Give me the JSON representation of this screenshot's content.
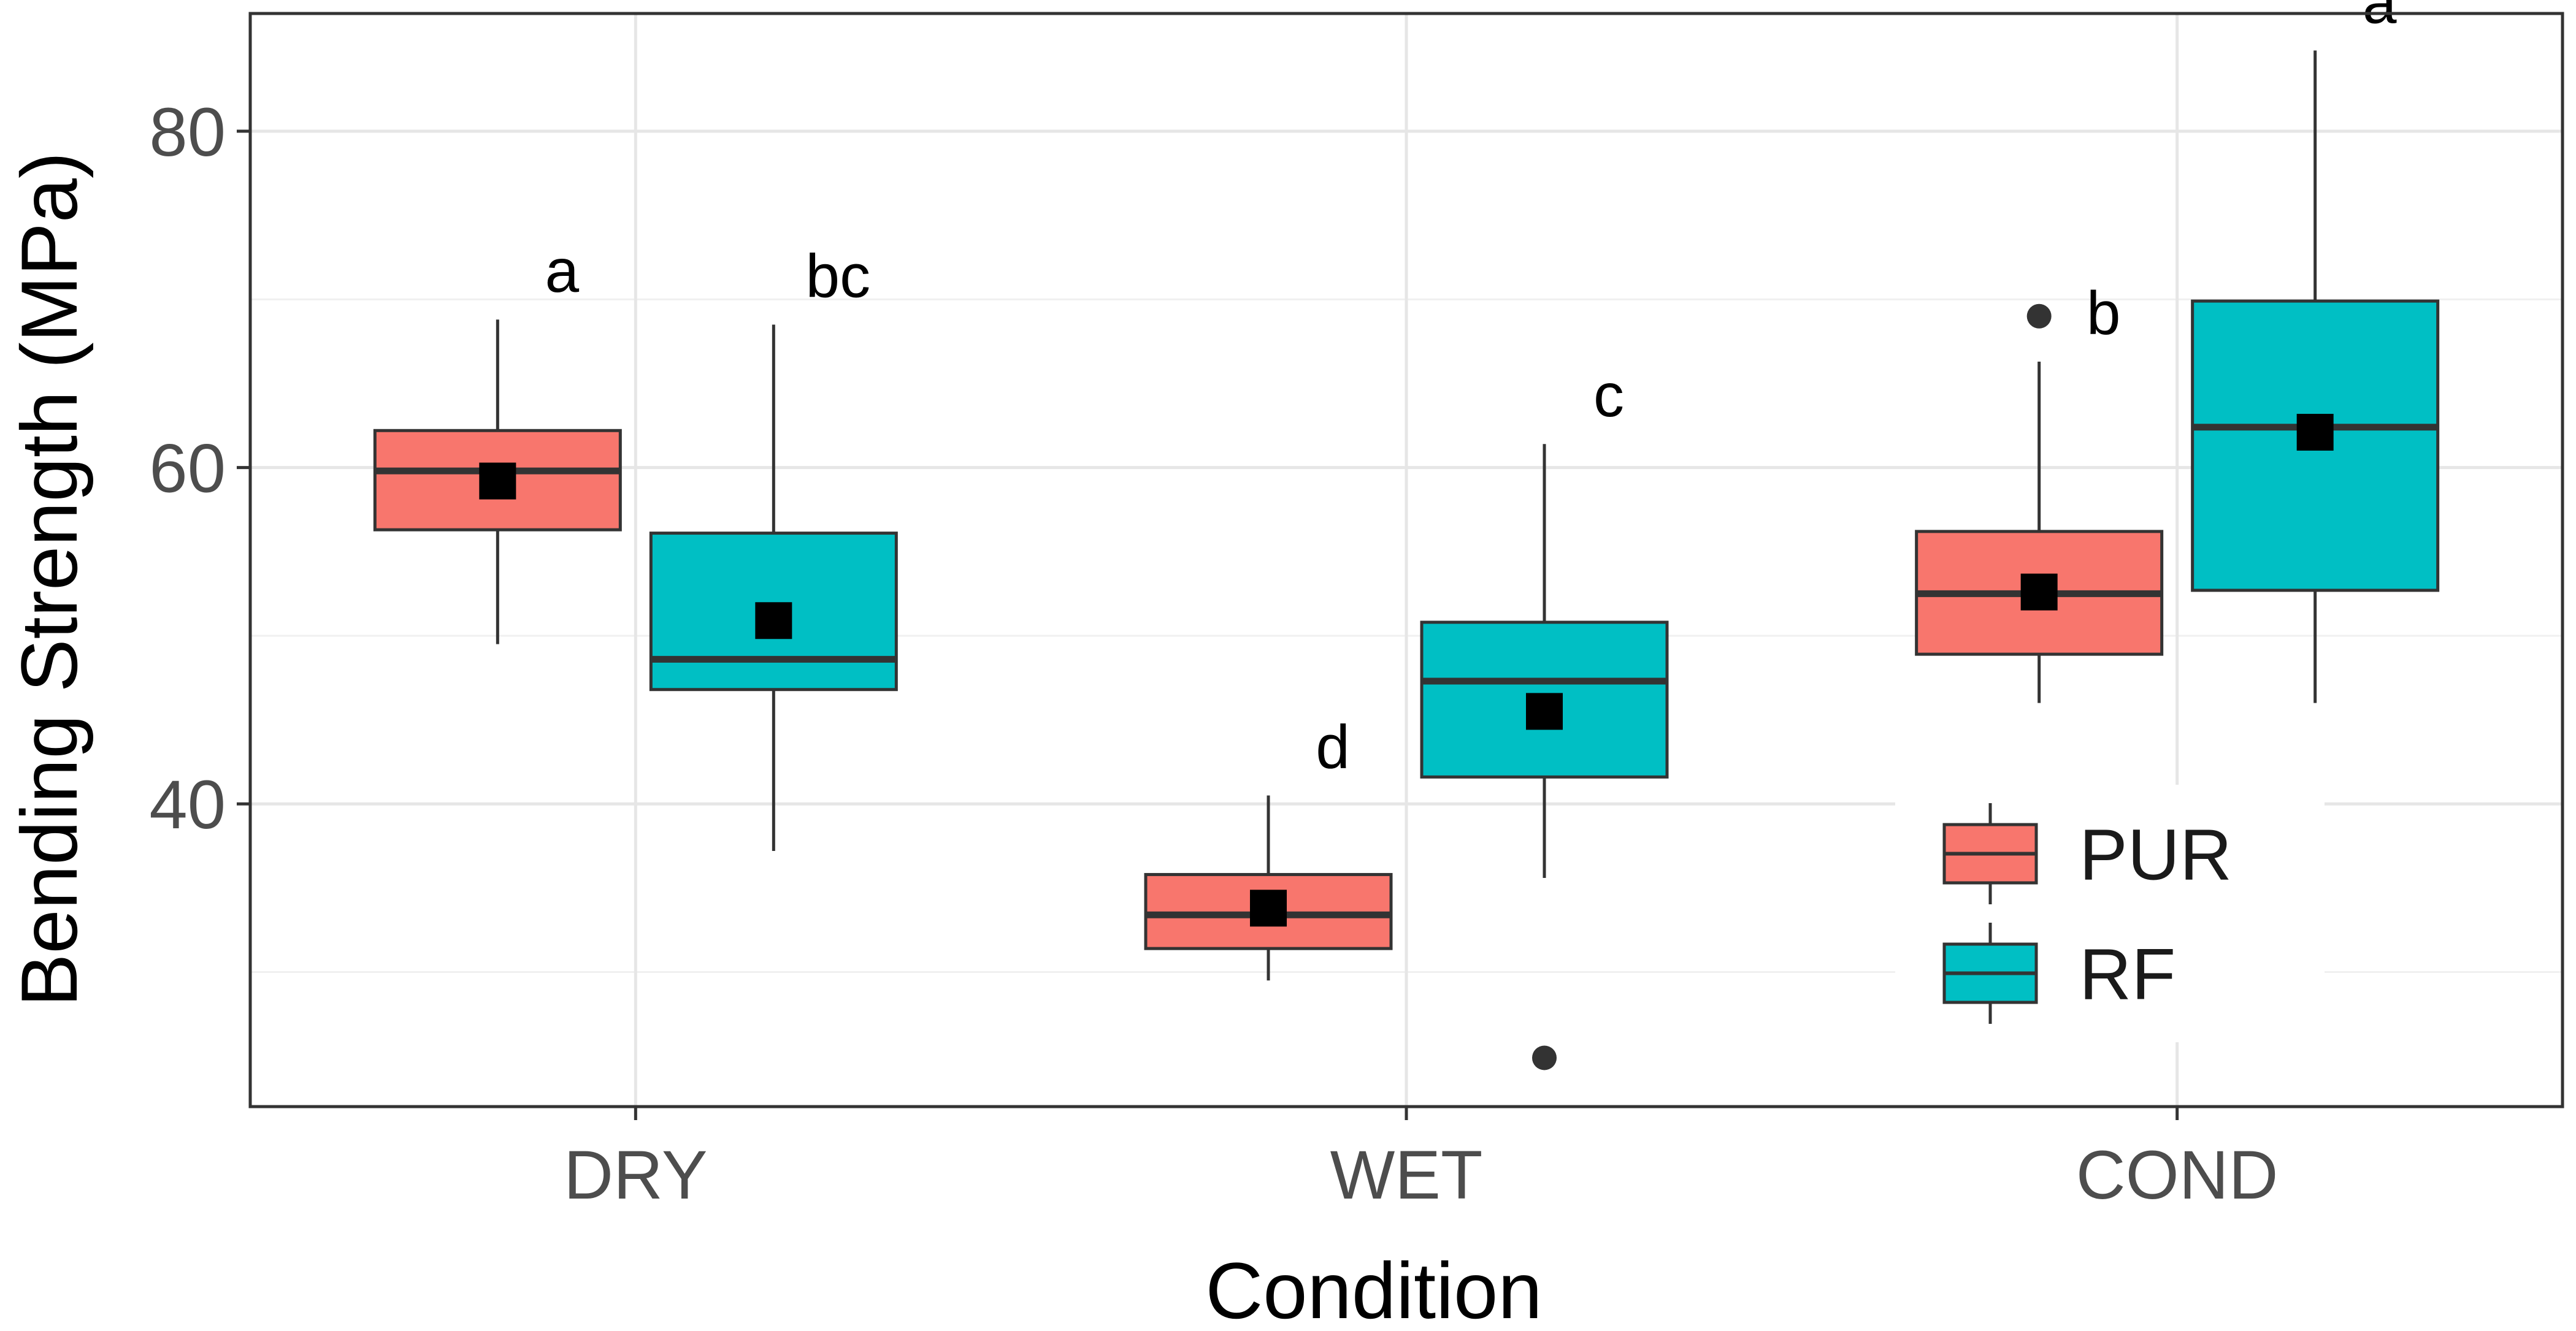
{
  "chart_data": {
    "type": "box",
    "xlabel": "Condition",
    "ylabel": "Bending Strength (MPa)",
    "categories": [
      "DRY",
      "WET",
      "COND"
    ],
    "ylim": [
      22,
      87
    ],
    "yticks": [
      40,
      60,
      80
    ],
    "yminor": [
      30,
      50,
      70
    ],
    "grid": true,
    "legend_position": "bottom-right, inside plot",
    "series": [
      {
        "name": "PUR",
        "color": "#F8766D",
        "boxes": [
          {
            "category": "DRY",
            "whisker_low": 49.5,
            "q1": 56.3,
            "median": 59.8,
            "q3": 62.2,
            "whisker_high": 68.8,
            "mean": 59.2,
            "outliers": [],
            "letter": "a"
          },
          {
            "category": "WET",
            "whisker_low": 29.5,
            "q1": 31.4,
            "median": 33.4,
            "q3": 35.8,
            "whisker_high": 40.5,
            "mean": 33.8,
            "outliers": [],
            "letter": "d"
          },
          {
            "category": "COND",
            "whisker_low": 46.0,
            "q1": 48.9,
            "median": 52.5,
            "q3": 56.2,
            "whisker_high": 66.3,
            "mean": 52.6,
            "outliers": [
              69.0
            ],
            "letter": "b"
          }
        ]
      },
      {
        "name": "RF",
        "color": "#00BFC4",
        "boxes": [
          {
            "category": "DRY",
            "whisker_low": 37.2,
            "q1": 46.8,
            "median": 48.6,
            "q3": 56.1,
            "whisker_high": 68.5,
            "mean": 50.9,
            "outliers": [],
            "letter": "bc"
          },
          {
            "category": "WET",
            "whisker_low": 35.6,
            "q1": 41.6,
            "median": 47.3,
            "q3": 50.8,
            "whisker_high": 61.4,
            "mean": 45.5,
            "outliers": [
              24.9
            ],
            "letter": "c"
          },
          {
            "category": "COND",
            "whisker_low": 46.0,
            "q1": 52.7,
            "median": 62.4,
            "q3": 69.9,
            "whisker_high": 84.8,
            "mean": 62.1,
            "outliers": [],
            "letter": "a"
          }
        ]
      }
    ]
  }
}
